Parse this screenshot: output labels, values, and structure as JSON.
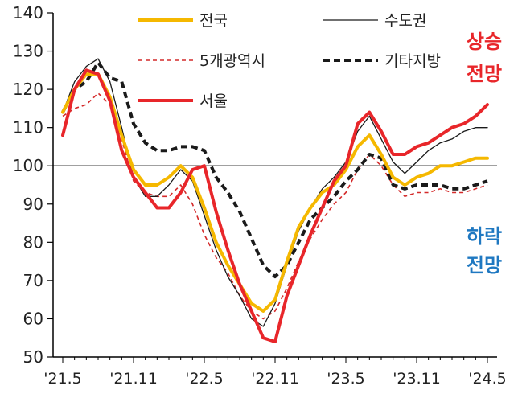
{
  "chart_data": {
    "type": "line",
    "x": [
      "'21.5",
      "'21.6",
      "'21.7",
      "'21.8",
      "'21.9",
      "'21.10",
      "'21.11",
      "'21.12",
      "'22.1",
      "'22.2",
      "'22.3",
      "'22.4",
      "'22.5",
      "'22.6",
      "'22.7",
      "'22.8",
      "'22.9",
      "'22.10",
      "'22.11",
      "'22.12",
      "'23.1",
      "'23.2",
      "'23.3",
      "'23.4",
      "'23.5",
      "'23.6",
      "'23.7",
      "'23.8",
      "'23.9",
      "'23.10",
      "'23.11",
      "'23.12",
      "'24.1",
      "'24.2",
      "'24.3",
      "'24.4",
      "'24.5"
    ],
    "xticks": [
      "'21.5",
      "'21.11",
      "'22.5",
      "'22.11",
      "'23.5",
      "'23.11",
      "'24.5"
    ],
    "yticks": [
      50,
      60,
      70,
      80,
      90,
      100,
      110,
      120,
      130,
      140
    ],
    "ylim": [
      50,
      140
    ],
    "reference_line": 100,
    "annotations": {
      "up_line1": "상승",
      "up_line2": "전망",
      "down_line1": "하락",
      "down_line2": "전망"
    },
    "annotation_colors": {
      "up": "#e8262a",
      "down": "#1f78c1"
    },
    "series": [
      {
        "name": "전국",
        "color": "#f5b800",
        "style": "solid-thick",
        "values": [
          114,
          120,
          124,
          124,
          118,
          108,
          99,
          95,
          95,
          97,
          100,
          97,
          89,
          80,
          74,
          69,
          64,
          62,
          65,
          75,
          84,
          89,
          93,
          95,
          99,
          105,
          108,
          103,
          97,
          95,
          97,
          98,
          100,
          100,
          101,
          102,
          102
        ]
      },
      {
        "name": "수도권",
        "color": "#1a1a1a",
        "style": "solid-thin",
        "values": [
          114,
          122,
          126,
          128,
          122,
          110,
          97,
          92,
          92,
          95,
          99,
          96,
          87,
          78,
          71,
          66,
          60,
          58,
          64,
          74,
          83,
          89,
          94,
          97,
          101,
          109,
          113,
          107,
          101,
          98,
          101,
          104,
          106,
          107,
          109,
          110,
          110
        ]
      },
      {
        "name": "5개광역시",
        "color": "#d42a2a",
        "style": "dashed-thin",
        "values": [
          113,
          115,
          116,
          119,
          116,
          107,
          96,
          93,
          92,
          92,
          95,
          90,
          82,
          76,
          72,
          66,
          62,
          60,
          62,
          68,
          75,
          81,
          86,
          90,
          93,
          99,
          103,
          100,
          95,
          92,
          93,
          93,
          94,
          93,
          93,
          94,
          95
        ]
      },
      {
        "name": "기타지방",
        "color": "#1a1a1a",
        "style": "dashed-thick",
        "values": [
          114,
          120,
          122,
          127,
          123,
          122,
          111,
          106,
          104,
          104,
          105,
          105,
          104,
          97,
          93,
          88,
          81,
          74,
          71,
          74,
          80,
          86,
          89,
          92,
          96,
          99,
          103,
          102,
          95,
          94,
          95,
          95,
          95,
          94,
          94,
          95,
          96
        ]
      },
      {
        "name": "서울",
        "color": "#e8262a",
        "style": "solid-thick",
        "values": [
          108,
          120,
          125,
          124,
          117,
          104,
          97,
          93,
          89,
          89,
          93,
          99,
          100,
          88,
          78,
          69,
          62,
          55,
          54,
          66,
          74,
          82,
          89,
          96,
          100,
          111,
          114,
          109,
          103,
          103,
          105,
          106,
          108,
          110,
          111,
          113,
          116
        ]
      }
    ]
  }
}
